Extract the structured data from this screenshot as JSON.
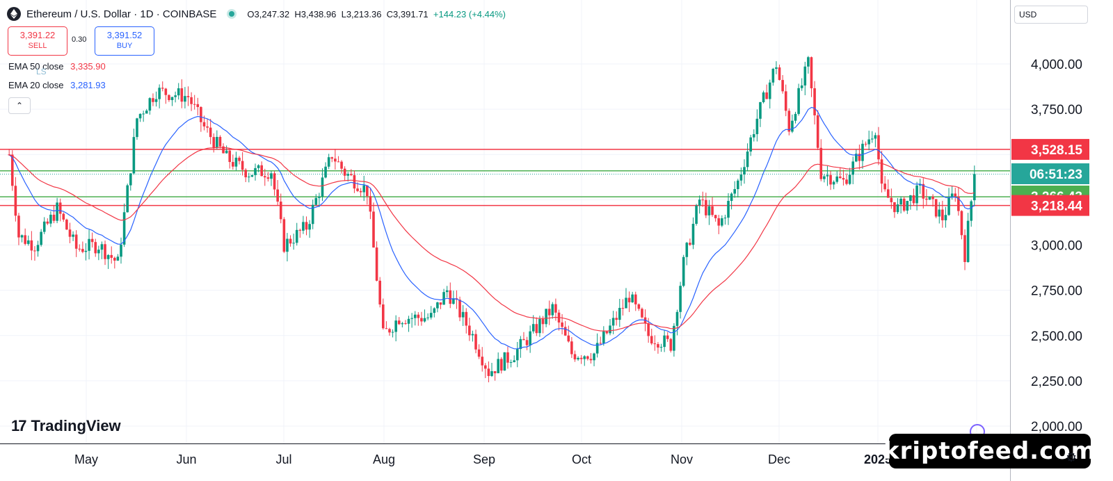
{
  "header": {
    "title": "Ethereum / U.S. Dollar · 1D · COINBASE",
    "open": "O3,247.32",
    "high": "H3,438.96",
    "low": "L3,213.36",
    "close": "C3,391.71",
    "change": "+144.23 (+4.44%)"
  },
  "trade": {
    "sell_price": "3,391.22",
    "sell_label": "SELL",
    "spread": "0.30",
    "buy_price": "3,391.52",
    "buy_label": "BUY"
  },
  "indicators": {
    "ema50_label": "EMA 50 close",
    "ema50_value": "3,335.90",
    "ema20_label": "EMA 20 close",
    "ema20_value": "3,281.93",
    "ls_label": "LS"
  },
  "currency_selector": "USD",
  "brand": "TradingView",
  "watermark": "kriptofeed.com",
  "colors": {
    "up": "#089981",
    "down": "#f23645",
    "ema20": "#2962ff",
    "ema50": "#f23645",
    "support": "#4caf50",
    "resistance": "#f23645"
  },
  "chart_data": {
    "type": "candlestick",
    "title": "Ethereum / U.S. Dollar · 1D · COINBASE",
    "x_ticks": [
      "May",
      "Jun",
      "Jul",
      "Aug",
      "Sep",
      "Oct",
      "Nov",
      "Dec",
      "2025",
      "Feb"
    ],
    "y_ticks": [
      "4,000.00",
      "3,750.00",
      "3,528.15",
      "06:51:23",
      "3,266.43",
      "3,218.44",
      "3,000.00",
      "2,750.00",
      "2,500.00",
      "2,250.00",
      "2,000.00"
    ],
    "ylim": [
      1900,
      4200
    ],
    "horizontal_lines": [
      {
        "value": 3528.15,
        "label": "3,528.15",
        "color": "#f23645"
      },
      {
        "value": 3410,
        "label": "06:51:23",
        "color": "#4caf50"
      },
      {
        "value": 3266.43,
        "label": "3,266.43",
        "color": "#4caf50"
      },
      {
        "value": 3218.44,
        "label": "3,218.44",
        "color": "#f23645"
      }
    ],
    "price_points": [
      [
        "2024-04-10",
        3500
      ],
      [
        "2024-04-13",
        3050
      ],
      [
        "2024-04-18",
        3000
      ],
      [
        "2024-04-25",
        3200
      ],
      [
        "2024-05-01",
        2980
      ],
      [
        "2024-05-08",
        3000
      ],
      [
        "2024-05-14",
        2900
      ],
      [
        "2024-05-20",
        3700
      ],
      [
        "2024-05-26",
        3850
      ],
      [
        "2024-06-05",
        3820
      ],
      [
        "2024-06-10",
        3650
      ],
      [
        "2024-06-17",
        3480
      ],
      [
        "2024-06-24",
        3400
      ],
      [
        "2024-07-01",
        3410
      ],
      [
        "2024-07-05",
        3000
      ],
      [
        "2024-07-12",
        3100
      ],
      [
        "2024-07-20",
        3500
      ],
      [
        "2024-07-24",
        3400
      ],
      [
        "2024-07-31",
        3300
      ],
      [
        "2024-08-05",
        2500
      ],
      [
        "2024-08-10",
        2600
      ],
      [
        "2024-08-20",
        2600
      ],
      [
        "2024-08-25",
        2750
      ],
      [
        "2024-09-02",
        2500
      ],
      [
        "2024-09-07",
        2300
      ],
      [
        "2024-09-15",
        2400
      ],
      [
        "2024-09-20",
        2500
      ],
      [
        "2024-09-27",
        2650
      ],
      [
        "2024-10-03",
        2400
      ],
      [
        "2024-10-10",
        2400
      ],
      [
        "2024-10-17",
        2600
      ],
      [
        "2024-10-21",
        2720
      ],
      [
        "2024-10-27",
        2500
      ],
      [
        "2024-11-03",
        2450
      ],
      [
        "2024-11-07",
        2900
      ],
      [
        "2024-11-12",
        3250
      ],
      [
        "2024-11-18",
        3100
      ],
      [
        "2024-11-24",
        3350
      ],
      [
        "2024-11-30",
        3700
      ],
      [
        "2024-12-06",
        4000
      ],
      [
        "2024-12-10",
        3650
      ],
      [
        "2024-12-16",
        4000
      ],
      [
        "2024-12-20",
        3400
      ],
      [
        "2024-12-27",
        3350
      ],
      [
        "2025-01-06",
        3650
      ],
      [
        "2025-01-08",
        3300
      ],
      [
        "2025-01-13",
        3200
      ],
      [
        "2025-01-20",
        3300
      ],
      [
        "2025-01-27",
        3150
      ],
      [
        "2025-01-31",
        3300
      ],
      [
        "2025-02-03",
        2950
      ],
      [
        "2025-02-06",
        3392
      ]
    ],
    "ohlc_last": {
      "open": 3247.32,
      "high": 3438.96,
      "low": 3213.36,
      "close": 3391.71
    }
  }
}
